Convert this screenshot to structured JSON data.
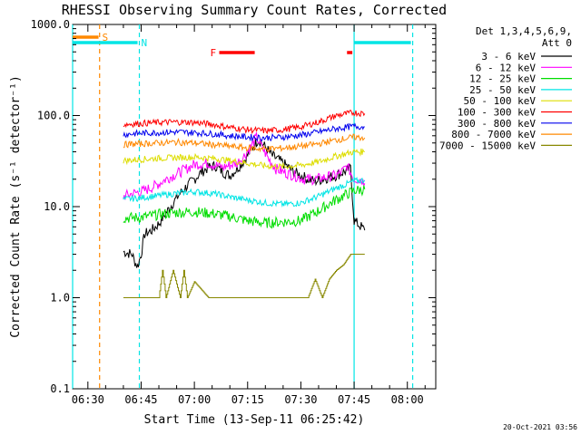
{
  "chart_data": {
    "type": "line",
    "title": "RHESSI Observing Summary Count Rates, Corrected",
    "xlabel": "Start Time (13-Sep-11 06:25:42)",
    "ylabel": "Corrected Count Rate (s⁻¹ detector⁻¹)",
    "x_unit": "minutes of day (UT)",
    "xlim": [
      385.7,
      488
    ],
    "ylim": [
      0.1,
      1000
    ],
    "log_y": true,
    "x_ticks": [
      {
        "label": "06:30",
        "value": 390
      },
      {
        "label": "06:45",
        "value": 405
      },
      {
        "label": "07:00",
        "value": 420
      },
      {
        "label": "07:15",
        "value": 435
      },
      {
        "label": "07:30",
        "value": 450
      },
      {
        "label": "07:45",
        "value": 465
      },
      {
        "label": "08:00",
        "value": 480
      }
    ],
    "y_ticks": [
      {
        "label": "1000.0",
        "value": 1000
      },
      {
        "label": "100.0",
        "value": 100
      },
      {
        "label": "10.0",
        "value": 10
      },
      {
        "label": "1.0",
        "value": 1
      },
      {
        "label": "0.1",
        "value": 0.1
      }
    ],
    "legend_header": [
      "Det 1,3,4,5,6,9,",
      "Att 0"
    ],
    "legend_position": "right",
    "series": [
      {
        "name": "3 - 6 keV",
        "color": "#000000",
        "x": [
          400,
          402.5,
          403,
          404,
          405,
          406,
          408,
          410,
          412,
          414,
          416,
          418,
          420,
          422,
          424,
          426,
          428,
          430,
          432,
          434,
          436,
          438,
          440,
          442,
          444,
          446,
          448,
          450,
          452,
          454,
          456,
          458,
          460,
          462,
          464,
          465,
          467,
          468
        ],
        "y": [
          3.2,
          3.0,
          2.6,
          2.2,
          3,
          5,
          5.5,
          6.5,
          8.5,
          11,
          14,
          17,
          20,
          24,
          27,
          28,
          24,
          22,
          26,
          32,
          42,
          55,
          45,
          36,
          32,
          28,
          24,
          22,
          20,
          19,
          20,
          21,
          22,
          24,
          26,
          7,
          6,
          5.5
        ]
      },
      {
        "name": "6 - 12 keV",
        "color": "#ff00ff",
        "x": [
          400,
          403,
          406,
          409,
          412,
          416,
          420,
          424,
          428,
          432,
          434,
          436,
          437.5,
          439,
          441,
          443,
          445,
          448,
          451,
          454,
          457,
          460,
          462,
          463,
          465,
          467,
          468
        ],
        "y": [
          13,
          14,
          15,
          17,
          20,
          24,
          29,
          30,
          27,
          30,
          36,
          46,
          58,
          45,
          33,
          26,
          24,
          22,
          20,
          20,
          21,
          22,
          25,
          28,
          20,
          20,
          18
        ]
      },
      {
        "name": "12 - 25 keV",
        "color": "#00dd00",
        "x": [
          400,
          405,
          410,
          415,
          420,
          425,
          430,
          435,
          440,
          445,
          450,
          455,
          460,
          465,
          468
        ],
        "y": [
          7.5,
          7.6,
          8.2,
          8.6,
          8.8,
          8.4,
          7.8,
          7,
          6.6,
          6.8,
          7,
          9,
          12,
          15,
          15.5
        ]
      },
      {
        "name": "25 - 50 keV",
        "color": "#00e5e5",
        "x": [
          400,
          405,
          410,
          415,
          420,
          425,
          430,
          435,
          440,
          445,
          450,
          455,
          460,
          465,
          468
        ],
        "y": [
          12,
          12.5,
          13.2,
          14,
          14.6,
          14,
          12.8,
          11.8,
          11,
          10.6,
          11,
          13,
          16,
          19,
          19.5
        ]
      },
      {
        "name": "50 - 100 keV",
        "color": "#dddd00",
        "x": [
          400,
          405,
          410,
          415,
          420,
          425,
          430,
          435,
          440,
          445,
          450,
          455,
          460,
          465,
          468
        ],
        "y": [
          32,
          33,
          34,
          34.5,
          35,
          34,
          32,
          30,
          28,
          27.5,
          28.5,
          31,
          36,
          40,
          40
        ]
      },
      {
        "name": "100 - 300 keV",
        "color": "#ff0000",
        "x": [
          400,
          405,
          410,
          415,
          420,
          425,
          430,
          435,
          440,
          445,
          450,
          455,
          460,
          465,
          468
        ],
        "y": [
          80,
          82,
          84,
          85,
          84,
          80,
          74,
          70,
          68,
          70,
          75,
          85,
          100,
          108,
          105
        ]
      },
      {
        "name": "300 - 800 keV",
        "color": "#0000ee",
        "x": [
          400,
          405,
          410,
          415,
          420,
          425,
          430,
          435,
          440,
          445,
          450,
          455,
          460,
          465,
          468
        ],
        "y": [
          62,
          64,
          65,
          66,
          65,
          63,
          60,
          58,
          57,
          58,
          61,
          66,
          72,
          76,
          75
        ]
      },
      {
        "name": "800 - 7000 keV",
        "color": "#ff8800",
        "x": [
          400,
          405,
          410,
          415,
          420,
          425,
          430,
          435,
          440,
          445,
          450,
          455,
          460,
          465,
          468
        ],
        "y": [
          48,
          49,
          50,
          51,
          50,
          48,
          46,
          44,
          43,
          44,
          46,
          49,
          54,
          58,
          57
        ]
      },
      {
        "name": "7000 - 15000 keV",
        "color": "#888800",
        "x": [
          400,
          404,
          405,
          408,
          410,
          411,
          412,
          414,
          416,
          417,
          418,
          420,
          424,
          427,
          428,
          430,
          434,
          436,
          440,
          444,
          447,
          450,
          452,
          454,
          456,
          458,
          460,
          462,
          464,
          467,
          468
        ],
        "y": [
          1,
          1,
          1,
          1,
          1,
          2,
          1,
          2,
          1,
          2,
          1,
          1.5,
          1,
          1,
          1,
          1,
          1,
          1,
          1,
          1,
          1,
          1,
          1,
          1.6,
          1,
          1.6,
          2,
          2.3,
          3,
          3,
          3
        ]
      }
    ],
    "annotations": [
      {
        "label": "S",
        "color": "#ff8800",
        "x_start": 385.7,
        "x_end": 393
      },
      {
        "label": "N",
        "color": "#00e5e5",
        "x_start": 385.7,
        "x_end": 404
      },
      {
        "label": "N",
        "color": "#00e5e5",
        "x_start": 465,
        "x_end": 481
      },
      {
        "label": "F",
        "color": "#ff0000",
        "x_start": 427,
        "x_end": 437
      },
      {
        "label": "F",
        "color": "#ff0000",
        "x_start": 463,
        "x_end": 464.5
      }
    ],
    "vlines": [
      {
        "x": 385.7,
        "color": "#00e5e5",
        "style": "solid"
      },
      {
        "x": 393.3,
        "color": "#ff8800",
        "style": "dashed"
      },
      {
        "x": 404.5,
        "color": "#00e5e5",
        "style": "dashed"
      },
      {
        "x": 465,
        "color": "#00e5e5",
        "style": "solid"
      },
      {
        "x": 481.5,
        "color": "#00e5e5",
        "style": "dashed"
      }
    ],
    "footer_timestamp": "20-Oct-2021 03:56"
  }
}
